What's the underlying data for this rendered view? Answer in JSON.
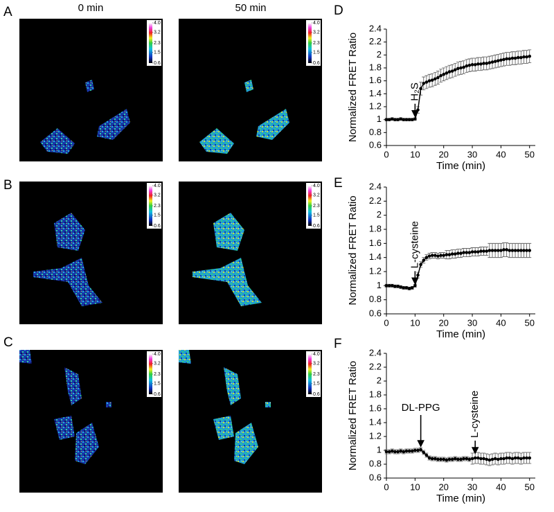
{
  "panel_labels": [
    "A",
    "B",
    "C",
    "D",
    "E",
    "F"
  ],
  "image_columns": [
    "0 min",
    "50 min"
  ],
  "colorbar_ticks": [
    {
      "value": 4.0,
      "label": "4.0"
    },
    {
      "value": 3.2,
      "label": "3.2"
    },
    {
      "value": 2.3,
      "label": "2.3"
    },
    {
      "value": 1.5,
      "label": "1.5"
    },
    {
      "value": 0.6,
      "label": "0.6"
    }
  ],
  "chart_data": [
    {
      "type": "line",
      "ylabel": "Normalized FRET Ratio",
      "xlabel": "Time (min)",
      "xlim": [
        0,
        52
      ],
      "ylim": [
        0.6,
        2.4
      ],
      "xticks": [
        0,
        10,
        20,
        30,
        40,
        50
      ],
      "yticks": [
        0.6,
        0.8,
        1,
        1.2,
        1.4,
        1.6,
        1.8,
        2,
        2.2,
        2.4
      ],
      "annotations": [
        {
          "text": "H₂S",
          "x": 10,
          "y": 1.02
        }
      ],
      "x": [
        0,
        1,
        2,
        3,
        4,
        5,
        6,
        7,
        8,
        9,
        10,
        11,
        12,
        13,
        14,
        15,
        16,
        17,
        18,
        19,
        20,
        21,
        22,
        23,
        24,
        25,
        26,
        27,
        28,
        29,
        30,
        31,
        32,
        33,
        34,
        35,
        36,
        37,
        38,
        39,
        40,
        41,
        42,
        43,
        44,
        45,
        46,
        47,
        48,
        49,
        50
      ],
      "series": [
        {
          "color": "#000000",
          "values": [
            1.0,
            1.0,
            1.01,
            1.0,
            1.0,
            1.01,
            1.0,
            1.0,
            1.0,
            1.0,
            1.01,
            1.15,
            1.48,
            1.56,
            1.58,
            1.6,
            1.61,
            1.63,
            1.65,
            1.68,
            1.7,
            1.72,
            1.74,
            1.75,
            1.77,
            1.79,
            1.8,
            1.81,
            1.83,
            1.84,
            1.85,
            1.85,
            1.86,
            1.86,
            1.87,
            1.87,
            1.88,
            1.89,
            1.9,
            1.91,
            1.92,
            1.93,
            1.94,
            1.94,
            1.95,
            1.95,
            1.96,
            1.96,
            1.97,
            1.97,
            1.98
          ],
          "errors": [
            0.02,
            0.02,
            0.02,
            0.02,
            0.02,
            0.02,
            0.02,
            0.02,
            0.02,
            0.02,
            0.02,
            0.05,
            0.1,
            0.1,
            0.1,
            0.1,
            0.1,
            0.1,
            0.1,
            0.1,
            0.1,
            0.1,
            0.1,
            0.1,
            0.1,
            0.1,
            0.1,
            0.1,
            0.1,
            0.1,
            0.1,
            0.1,
            0.1,
            0.1,
            0.1,
            0.1,
            0.1,
            0.1,
            0.1,
            0.1,
            0.1,
            0.1,
            0.1,
            0.1,
            0.1,
            0.1,
            0.1,
            0.1,
            0.1,
            0.1,
            0.1
          ]
        }
      ]
    },
    {
      "type": "line",
      "ylabel": "Normalized FRET Ratio",
      "xlabel": "Time (min)",
      "xlim": [
        0,
        52
      ],
      "ylim": [
        0.6,
        2.4
      ],
      "xticks": [
        0,
        10,
        20,
        30,
        40,
        50
      ],
      "yticks": [
        0.6,
        0.8,
        1,
        1.2,
        1.4,
        1.6,
        1.8,
        2,
        2.2,
        2.4
      ],
      "annotations": [
        {
          "text": "L-cysteine",
          "x": 10,
          "y": 1.0
        }
      ],
      "x": [
        0,
        1,
        2,
        3,
        4,
        5,
        6,
        7,
        8,
        9,
        10,
        11,
        12,
        13,
        14,
        15,
        16,
        17,
        18,
        19,
        20,
        21,
        22,
        23,
        24,
        25,
        26,
        27,
        28,
        29,
        30,
        31,
        32,
        33,
        34,
        35,
        36,
        37,
        38,
        39,
        40,
        41,
        42,
        43,
        44,
        45,
        46,
        47,
        48,
        49,
        50
      ],
      "series": [
        {
          "color": "#000000",
          "values": [
            1.0,
            1.0,
            1.0,
            0.99,
            0.99,
            0.98,
            0.97,
            0.97,
            0.96,
            0.97,
            1.0,
            1.15,
            1.3,
            1.36,
            1.4,
            1.42,
            1.43,
            1.43,
            1.42,
            1.43,
            1.43,
            1.44,
            1.44,
            1.45,
            1.45,
            1.46,
            1.46,
            1.47,
            1.47,
            1.47,
            1.48,
            1.48,
            1.48,
            1.49,
            1.49,
            1.49,
            1.5,
            1.5,
            1.5,
            1.5,
            1.5,
            1.51,
            1.51,
            1.5,
            1.5,
            1.5,
            1.5,
            1.5,
            1.5,
            1.5,
            1.5
          ],
          "errors": [
            0.02,
            0.02,
            0.02,
            0.02,
            0.02,
            0.02,
            0.02,
            0.02,
            0.02,
            0.02,
            0.02,
            0.04,
            0.04,
            0.04,
            0.04,
            0.04,
            0.04,
            0.04,
            0.04,
            0.04,
            0.04,
            0.06,
            0.06,
            0.06,
            0.06,
            0.06,
            0.06,
            0.06,
            0.06,
            0.06,
            0.06,
            0.06,
            0.06,
            0.06,
            0.06,
            0.06,
            0.1,
            0.1,
            0.1,
            0.1,
            0.1,
            0.1,
            0.1,
            0.1,
            0.1,
            0.1,
            0.1,
            0.1,
            0.1,
            0.1,
            0.1
          ]
        }
      ]
    },
    {
      "type": "line",
      "ylabel": "Normalized FRET Ratio",
      "xlabel": "Time (min)",
      "xlim": [
        0,
        52
      ],
      "ylim": [
        0.6,
        2.4
      ],
      "xticks": [
        0,
        10,
        20,
        30,
        40,
        50
      ],
      "yticks": [
        0.6,
        0.8,
        1,
        1.2,
        1.4,
        1.6,
        1.8,
        2,
        2.2,
        2.4
      ],
      "annotations": [
        {
          "text": "DL-PPG",
          "x": 12,
          "y": 1.03
        },
        {
          "text": "L-cysteine",
          "x": 31,
          "y": 0.93
        }
      ],
      "x": [
        0,
        1,
        2,
        3,
        4,
        5,
        6,
        7,
        8,
        9,
        10,
        11,
        12,
        13,
        14,
        15,
        16,
        17,
        18,
        19,
        20,
        21,
        22,
        23,
        24,
        25,
        26,
        27,
        28,
        29,
        30,
        31,
        32,
        33,
        34,
        35,
        36,
        37,
        38,
        39,
        40,
        41,
        42,
        43,
        44,
        45,
        46,
        47,
        48,
        49,
        50
      ],
      "series": [
        {
          "color": "#000000",
          "values": [
            0.98,
            0.98,
            0.99,
            0.98,
            0.98,
            0.99,
            0.98,
            0.99,
            0.99,
            0.99,
            1.0,
            1.0,
            1.01,
            0.97,
            0.93,
            0.89,
            0.88,
            0.88,
            0.87,
            0.87,
            0.87,
            0.86,
            0.87,
            0.87,
            0.88,
            0.87,
            0.87,
            0.88,
            0.88,
            0.87,
            0.88,
            0.89,
            0.89,
            0.88,
            0.88,
            0.87,
            0.86,
            0.87,
            0.88,
            0.87,
            0.88,
            0.88,
            0.89,
            0.89,
            0.88,
            0.89,
            0.89,
            0.88,
            0.89,
            0.89,
            0.89
          ],
          "errors": [
            0.03,
            0.03,
            0.03,
            0.03,
            0.03,
            0.03,
            0.03,
            0.03,
            0.03,
            0.03,
            0.03,
            0.03,
            0.03,
            0.03,
            0.03,
            0.03,
            0.03,
            0.03,
            0.03,
            0.03,
            0.03,
            0.03,
            0.03,
            0.03,
            0.03,
            0.03,
            0.03,
            0.03,
            0.03,
            0.03,
            0.08,
            0.08,
            0.08,
            0.08,
            0.08,
            0.08,
            0.08,
            0.08,
            0.08,
            0.08,
            0.08,
            0.08,
            0.08,
            0.08,
            0.08,
            0.08,
            0.08,
            0.08,
            0.08,
            0.08,
            0.08
          ]
        }
      ]
    }
  ]
}
